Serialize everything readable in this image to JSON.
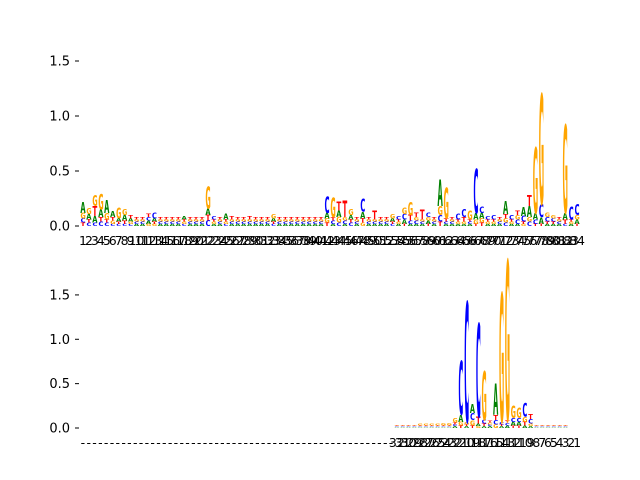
{
  "chart_data": [
    {
      "type": "sequence-logo",
      "title": "",
      "xlabel": "",
      "ylabel": "",
      "ylim": [
        0,
        1.6
      ],
      "yticks": [
        0.0,
        0.5,
        1.0,
        1.5
      ],
      "ytick_labels": [
        "0.0",
        "0.5",
        "1.0",
        "1.5"
      ],
      "positions": [
        "1",
        "2",
        "3",
        "4",
        "5",
        "6",
        "7",
        "8",
        "9",
        "10",
        "11",
        "12",
        "13",
        "14",
        "15",
        "16",
        "17",
        "18",
        "19",
        "20",
        "21",
        "22",
        "23",
        "24",
        "25",
        "26",
        "27",
        "28",
        "29",
        "30",
        "31",
        "32",
        "33",
        "34",
        "35",
        "36",
        "37",
        "38",
        "39",
        "40",
        "41",
        "42",
        "43",
        "44",
        "45",
        "46",
        "47",
        "48",
        "49",
        "50",
        "51",
        "52",
        "53",
        "54",
        "55",
        "56",
        "57",
        "58",
        "59",
        "60",
        "61",
        "62",
        "63",
        "64",
        "65",
        "66",
        "67",
        "68",
        "69",
        "70",
        "71",
        "72",
        "73",
        "74",
        "75",
        "76",
        "77",
        "78",
        "79",
        "80",
        "81",
        "82",
        "83",
        "84"
      ],
      "series": [
        {
          "name": "A",
          "color": "#008000",
          "values": [
            0.1,
            0.05,
            0.06,
            0.07,
            0.12,
            0.05,
            0.03,
            0.05,
            0.03,
            0.02,
            0.02,
            0.03,
            0.03,
            0.02,
            0.02,
            0.02,
            0.02,
            0.03,
            0.02,
            0.02,
            0.02,
            0.06,
            0.02,
            0.02,
            0.05,
            0.02,
            0.02,
            0.02,
            0.02,
            0.02,
            0.02,
            0.02,
            0.03,
            0.02,
            0.02,
            0.02,
            0.02,
            0.02,
            0.02,
            0.02,
            0.02,
            0.05,
            0.02,
            0.06,
            0.02,
            0.04,
            0.02,
            0.06,
            0.02,
            0.02,
            0.02,
            0.02,
            0.03,
            0.02,
            0.04,
            0.02,
            0.02,
            0.02,
            0.03,
            0.02,
            0.24,
            0.02,
            0.02,
            0.02,
            0.02,
            0.02,
            0.06,
            0.05,
            0.02,
            0.02,
            0.02,
            0.12,
            0.02,
            0.02,
            0.08,
            0.1,
            0.06,
            0.06,
            0.02,
            0.02,
            0.02,
            0.06,
            0.02,
            0.04
          ]
        },
        {
          "name": "C",
          "color": "#0000ff",
          "values": [
            0.04,
            0.03,
            0.03,
            0.04,
            0.03,
            0.02,
            0.02,
            0.02,
            0.02,
            0.02,
            0.02,
            0.03,
            0.05,
            0.02,
            0.02,
            0.02,
            0.02,
            0.02,
            0.02,
            0.02,
            0.02,
            0.05,
            0.03,
            0.02,
            0.02,
            0.02,
            0.02,
            0.02,
            0.02,
            0.02,
            0.02,
            0.02,
            0.02,
            0.02,
            0.02,
            0.02,
            0.02,
            0.02,
            0.02,
            0.02,
            0.02,
            0.15,
            0.03,
            0.03,
            0.03,
            0.03,
            0.02,
            0.12,
            0.02,
            0.02,
            0.02,
            0.02,
            0.02,
            0.03,
            0.05,
            0.03,
            0.03,
            0.02,
            0.04,
            0.02,
            0.06,
            0.02,
            0.02,
            0.05,
            0.07,
            0.02,
            0.4,
            0.06,
            0.03,
            0.04,
            0.02,
            0.03,
            0.04,
            0.04,
            0.05,
            0.04,
            0.04,
            0.12,
            0.04,
            0.03,
            0.02,
            0.02,
            0.12,
            0.1
          ]
        },
        {
          "name": "G",
          "color": "#ffa500",
          "values": [
            0.05,
            0.05,
            0.1,
            0.14,
            0.06,
            0.03,
            0.1,
            0.05,
            0.02,
            0.02,
            0.02,
            0.02,
            0.02,
            0.02,
            0.02,
            0.02,
            0.02,
            0.02,
            0.02,
            0.02,
            0.02,
            0.2,
            0.02,
            0.02,
            0.02,
            0.02,
            0.02,
            0.02,
            0.02,
            0.02,
            0.02,
            0.02,
            0.04,
            0.02,
            0.02,
            0.02,
            0.02,
            0.02,
            0.02,
            0.02,
            0.02,
            0.04,
            0.18,
            0.05,
            0.03,
            0.05,
            0.02,
            0.03,
            0.02,
            0.02,
            0.02,
            0.02,
            0.04,
            0.02,
            0.06,
            0.12,
            0.03,
            0.02,
            0.03,
            0.02,
            0.08,
            0.28,
            0.02,
            0.02,
            0.02,
            0.08,
            0.04,
            0.04,
            0.02,
            0.02,
            0.02,
            0.04,
            0.02,
            0.04,
            0.02,
            0.04,
            0.6,
            1.0,
            0.04,
            0.03,
            0.02,
            0.8,
            0.02,
            0.04
          ]
        },
        {
          "name": "T",
          "color": "#ff0000",
          "values": [
            0.03,
            0.03,
            0.09,
            0.04,
            0.03,
            0.03,
            0.02,
            0.03,
            0.03,
            0.02,
            0.02,
            0.03,
            0.02,
            0.02,
            0.02,
            0.02,
            0.02,
            0.02,
            0.02,
            0.02,
            0.02,
            0.05,
            0.02,
            0.02,
            0.02,
            0.03,
            0.02,
            0.02,
            0.03,
            0.02,
            0.02,
            0.02,
            0.02,
            0.02,
            0.02,
            0.02,
            0.02,
            0.02,
            0.02,
            0.02,
            0.02,
            0.03,
            0.03,
            0.08,
            0.15,
            0.03,
            0.02,
            0.04,
            0.02,
            0.08,
            0.02,
            0.02,
            0.02,
            0.02,
            0.02,
            0.05,
            0.04,
            0.09,
            0.02,
            0.02,
            0.04,
            0.03,
            0.02,
            0.02,
            0.04,
            0.02,
            0.02,
            0.03,
            0.02,
            0.02,
            0.02,
            0.04,
            0.02,
            0.04,
            0.02,
            0.1,
            0.02,
            0.02,
            0.02,
            0.02,
            0.02,
            0.04,
            0.02,
            0.02
          ]
        }
      ]
    },
    {
      "type": "sequence-logo",
      "title": "",
      "xlabel": "",
      "ylabel": "",
      "ylim": [
        0,
        1.95
      ],
      "yticks": [
        0.0,
        0.5,
        1.0,
        1.5
      ],
      "ytick_labels": [
        "0.0",
        "0.5",
        "1.0",
        "1.5"
      ],
      "positions": [
        "-",
        "-",
        "-",
        "-",
        "-",
        "-",
        "-",
        "-",
        "-",
        "-",
        "-",
        "-",
        "-",
        "-",
        "-",
        "-",
        "-",
        "-",
        "-",
        "-",
        "-",
        "-",
        "-",
        "-",
        "-",
        "-",
        "-",
        "-",
        "-",
        "-",
        "-",
        "-",
        "-",
        "-",
        "-",
        "-",
        "-",
        "-",
        "-",
        "-",
        "-",
        "-",
        "-",
        "-",
        "-",
        "-",
        "-",
        "-",
        "-",
        "-",
        "-",
        "-",
        "-",
        "-",
        "32",
        "31",
        "30",
        "29",
        "28",
        "27",
        "26",
        "25",
        "24",
        "23",
        "22",
        "21",
        "20",
        "19",
        "18",
        "17",
        "16",
        "15",
        "14",
        "13",
        "12",
        "11",
        "10",
        "9",
        "8",
        "7",
        "6",
        "5",
        "4",
        "3",
        "2",
        "1"
      ],
      "series": [
        {
          "name": "A",
          "color": "#008000",
          "values": [
            0,
            0,
            0,
            0,
            0,
            0,
            0,
            0,
            0,
            0,
            0,
            0,
            0,
            0,
            0,
            0,
            0,
            0,
            0,
            0,
            0,
            0,
            0,
            0,
            0,
            0,
            0,
            0,
            0,
            0,
            0,
            0,
            0,
            0,
            0,
            0,
            0,
            0,
            0,
            0,
            0,
            0,
            0,
            0,
            0,
            0,
            0,
            0,
            0,
            0,
            0,
            0,
            0,
            0,
            0.01,
            0.01,
            0.01,
            0.01,
            0.01,
            0.01,
            0.01,
            0.01,
            0.01,
            0.01,
            0.02,
            0.08,
            0.02,
            0.1,
            0.03,
            0.02,
            0.02,
            0.35,
            0.02,
            0.03,
            0.04,
            0.04,
            0.03,
            0.02,
            0.01,
            0.01,
            0.01,
            0.01,
            0.01,
            0.01
          ]
        },
        {
          "name": "C",
          "color": "#0000ff",
          "values": [
            0,
            0,
            0,
            0,
            0,
            0,
            0,
            0,
            0,
            0,
            0,
            0,
            0,
            0,
            0,
            0,
            0,
            0,
            0,
            0,
            0,
            0,
            0,
            0,
            0,
            0,
            0,
            0,
            0,
            0,
            0,
            0,
            0,
            0,
            0,
            0,
            0,
            0,
            0,
            0,
            0,
            0,
            0,
            0,
            0,
            0,
            0,
            0,
            0,
            0,
            0,
            0,
            0,
            0,
            0.01,
            0.01,
            0.01,
            0.01,
            0.01,
            0.01,
            0.01,
            0.01,
            0.01,
            0.01,
            0.02,
            0.6,
            1.35,
            0.08,
            1.05,
            0.04,
            0.02,
            0.05,
            0.03,
            0.03,
            0.04,
            0.04,
            0.15,
            0.05,
            0.01,
            0.01,
            0.01,
            0.01,
            0.01,
            0.01
          ]
        },
        {
          "name": "G",
          "color": "#ffa500",
          "values": [
            0,
            0,
            0,
            0,
            0,
            0,
            0,
            0,
            0,
            0,
            0,
            0,
            0,
            0,
            0,
            0,
            0,
            0,
            0,
            0,
            0,
            0,
            0,
            0,
            0,
            0,
            0,
            0,
            0,
            0,
            0,
            0,
            0,
            0,
            0,
            0,
            0,
            0,
            0,
            0,
            0,
            0,
            0,
            0,
            0,
            0,
            0,
            0,
            0,
            0,
            0,
            0,
            0,
            0,
            0.01,
            0.01,
            0.01,
            0.01,
            0.02,
            0.02,
            0.02,
            0.02,
            0.03,
            0.03,
            0.05,
            0.04,
            0.03,
            0.06,
            0.02,
            0.55,
            0.02,
            0.04,
            1.45,
            1.8,
            0.14,
            0.12,
            0.06,
            0.03,
            0.01,
            0.01,
            0.01,
            0.01,
            0.01,
            0.01
          ]
        },
        {
          "name": "T",
          "color": "#ff0000",
          "values": [
            0,
            0,
            0,
            0,
            0,
            0,
            0,
            0,
            0,
            0,
            0,
            0,
            0,
            0,
            0,
            0,
            0,
            0,
            0,
            0,
            0,
            0,
            0,
            0,
            0,
            0,
            0,
            0,
            0,
            0,
            0,
            0,
            0,
            0,
            0,
            0,
            0,
            0,
            0,
            0,
            0,
            0,
            0,
            0,
            0,
            0,
            0,
            0,
            0,
            0,
            0,
            0,
            0,
            0,
            0.01,
            0.01,
            0.01,
            0.01,
            0.01,
            0.01,
            0.01,
            0.01,
            0.01,
            0.01,
            0.02,
            0.03,
            0.02,
            0.03,
            0.08,
            0.03,
            0.02,
            0.06,
            0.02,
            0.03,
            0.03,
            0.03,
            0.04,
            0.06,
            0.01,
            0.01,
            0.01,
            0.01,
            0.01,
            0.01
          ]
        }
      ]
    }
  ]
}
